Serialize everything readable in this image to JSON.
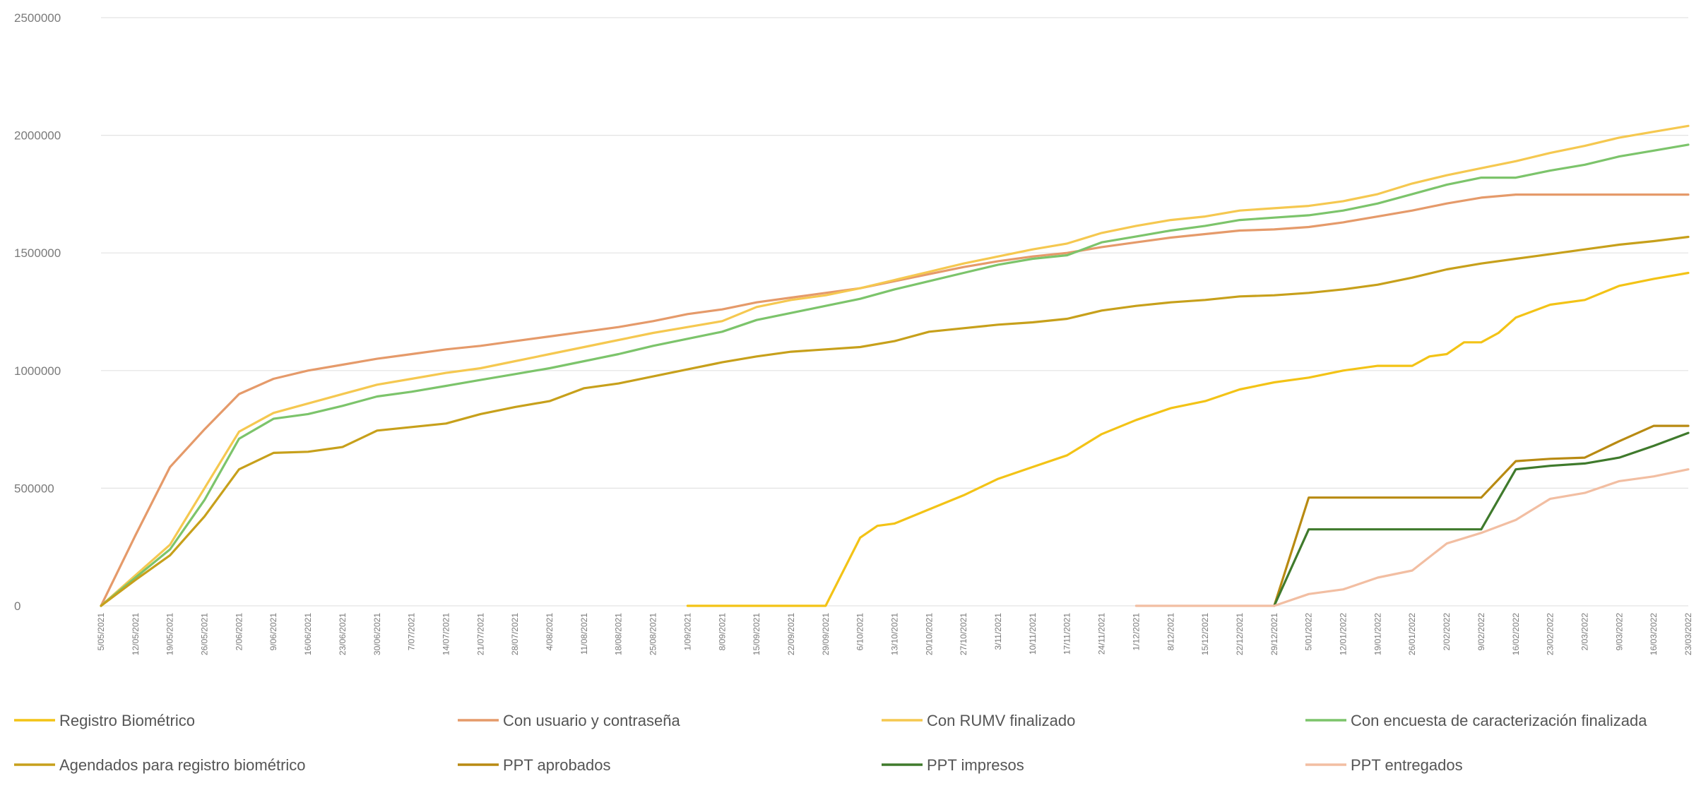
{
  "chart_data": {
    "type": "line",
    "title": "",
    "xlabel": "",
    "ylabel": "",
    "ylim": [
      0,
      2500000
    ],
    "yticks": [
      {
        "value": 0,
        "label": "0"
      },
      {
        "value": 500000,
        "label": "500000"
      },
      {
        "value": 1000000,
        "label": "1000000"
      },
      {
        "value": 1500000,
        "label": "1500000"
      },
      {
        "value": 2000000,
        "label": "2000000"
      },
      {
        "value": 2500000,
        "label": "2500000"
      }
    ],
    "grid": "horizontal",
    "legend_position": "bottom",
    "categories": [
      "5/05/2021",
      "12/05/2021",
      "19/05/2021",
      "26/05/2021",
      "2/06/2021",
      "9/06/2021",
      "16/06/2021",
      "23/06/2021",
      "30/06/2021",
      "7/07/2021",
      "14/07/2021",
      "21/07/2021",
      "28/07/2021",
      "4/08/2021",
      "11/08/2021",
      "18/08/2021",
      "25/08/2021",
      "1/09/2021",
      "8/09/2021",
      "15/09/2021",
      "22/09/2021",
      "29/09/2021",
      "6/10/2021",
      "13/10/2021",
      "20/10/2021",
      "27/10/2021",
      "3/11/2021",
      "10/11/2021",
      "17/11/2021",
      "24/11/2021",
      "1/12/2021",
      "8/12/2021",
      "15/12/2021",
      "22/12/2021",
      "29/12/2021",
      "5/01/2022",
      "12/01/2022",
      "19/01/2022",
      "26/01/2022",
      "2/02/2022",
      "9/02/2022",
      "16/02/2022",
      "23/02/2022",
      "2/03/2022",
      "9/03/2022",
      "16/03/2022",
      "23/03/2022"
    ],
    "series": [
      {
        "name": "Registro Biométrico",
        "color": "#f3c316",
        "dash": false,
        "points": [
          [
            17,
            0
          ],
          [
            18,
            0
          ],
          [
            19,
            0
          ],
          [
            20,
            0
          ],
          [
            21,
            0
          ],
          [
            21,
            0
          ],
          [
            22,
            290000
          ],
          [
            22.5,
            340000
          ],
          [
            23,
            350000
          ],
          [
            24,
            410000
          ],
          [
            25,
            470000
          ],
          [
            26,
            540000
          ],
          [
            27,
            590000
          ],
          [
            28,
            640000
          ],
          [
            29,
            730000
          ],
          [
            30,
            790000
          ],
          [
            31,
            840000
          ],
          [
            32,
            870000
          ],
          [
            33,
            920000
          ],
          [
            34,
            950000
          ],
          [
            35,
            970000
          ],
          [
            36,
            1000000
          ],
          [
            37,
            1020000
          ],
          [
            38,
            1020000
          ],
          [
            38.5,
            1060000
          ],
          [
            39,
            1070000
          ],
          [
            39.5,
            1120000
          ],
          [
            40,
            1120000
          ],
          [
            40.5,
            1160000
          ],
          [
            41,
            1225000
          ],
          [
            42,
            1280000
          ],
          [
            43,
            1300000
          ],
          [
            44,
            1360000
          ],
          [
            45,
            1390000
          ],
          [
            46,
            1415000
          ]
        ]
      },
      {
        "name": "Con usuario y contraseña",
        "color": "#e59a6a",
        "dash": false,
        "points": [
          [
            0,
            0
          ],
          [
            1,
            300000
          ],
          [
            2,
            590000
          ],
          [
            3,
            750000
          ],
          [
            4,
            900000
          ],
          [
            5,
            965000
          ],
          [
            6,
            1000000
          ],
          [
            7,
            1025000
          ],
          [
            8,
            1050000
          ],
          [
            9,
            1070000
          ],
          [
            10,
            1090000
          ],
          [
            11,
            1105000
          ],
          [
            12,
            1125000
          ],
          [
            13,
            1145000
          ],
          [
            14,
            1165000
          ],
          [
            15,
            1185000
          ],
          [
            16,
            1210000
          ],
          [
            17,
            1240000
          ],
          [
            18,
            1260000
          ],
          [
            19,
            1290000
          ],
          [
            20,
            1310000
          ],
          [
            21,
            1330000
          ],
          [
            22,
            1350000
          ],
          [
            23,
            1380000
          ],
          [
            24,
            1410000
          ],
          [
            25,
            1440000
          ],
          [
            26,
            1465000
          ],
          [
            27,
            1485000
          ],
          [
            28,
            1500000
          ],
          [
            29,
            1525000
          ],
          [
            30,
            1545000
          ],
          [
            31,
            1565000
          ],
          [
            32,
            1580000
          ],
          [
            33,
            1595000
          ],
          [
            34,
            1600000
          ],
          [
            35,
            1610000
          ],
          [
            36,
            1630000
          ],
          [
            37,
            1655000
          ],
          [
            38,
            1680000
          ],
          [
            39,
            1710000
          ],
          [
            40,
            1735000
          ],
          [
            41,
            1748000
          ],
          [
            42,
            1748000
          ],
          [
            43,
            1748000
          ],
          [
            44,
            1748000
          ],
          [
            45,
            1748000
          ],
          [
            46,
            1748000
          ]
        ]
      },
      {
        "name": "Con RUMV finalizado",
        "color": "#f5c850",
        "dash": false,
        "points": [
          [
            0,
            0
          ],
          [
            1,
            130000
          ],
          [
            2,
            260000
          ],
          [
            3,
            500000
          ],
          [
            4,
            740000
          ],
          [
            5,
            820000
          ],
          [
            6,
            860000
          ],
          [
            7,
            900000
          ],
          [
            8,
            940000
          ],
          [
            9,
            965000
          ],
          [
            10,
            990000
          ],
          [
            11,
            1010000
          ],
          [
            12,
            1040000
          ],
          [
            13,
            1070000
          ],
          [
            14,
            1100000
          ],
          [
            15,
            1130000
          ],
          [
            16,
            1160000
          ],
          [
            17,
            1185000
          ],
          [
            18,
            1210000
          ],
          [
            19,
            1270000
          ],
          [
            20,
            1300000
          ],
          [
            21,
            1320000
          ],
          [
            22,
            1350000
          ],
          [
            23,
            1385000
          ],
          [
            24,
            1420000
          ],
          [
            25,
            1455000
          ],
          [
            26,
            1485000
          ],
          [
            27,
            1515000
          ],
          [
            28,
            1540000
          ],
          [
            29,
            1585000
          ],
          [
            30,
            1615000
          ],
          [
            31,
            1640000
          ],
          [
            32,
            1655000
          ],
          [
            33,
            1680000
          ],
          [
            34,
            1690000
          ],
          [
            35,
            1700000
          ],
          [
            36,
            1720000
          ],
          [
            37,
            1750000
          ],
          [
            38,
            1795000
          ],
          [
            39,
            1830000
          ],
          [
            40,
            1860000
          ],
          [
            41,
            1890000
          ],
          [
            42,
            1925000
          ],
          [
            43,
            1955000
          ],
          [
            44,
            1990000
          ],
          [
            45,
            2015000
          ],
          [
            46,
            2040000
          ]
        ]
      },
      {
        "name": "Con encuesta de caracterización finalizada",
        "color": "#7cc46b",
        "dash": false,
        "points": [
          [
            0,
            0
          ],
          [
            1,
            120000
          ],
          [
            2,
            240000
          ],
          [
            3,
            450000
          ],
          [
            4,
            710000
          ],
          [
            5,
            795000
          ],
          [
            6,
            815000
          ],
          [
            7,
            850000
          ],
          [
            8,
            890000
          ],
          [
            9,
            910000
          ],
          [
            10,
            935000
          ],
          [
            11,
            960000
          ],
          [
            12,
            985000
          ],
          [
            13,
            1010000
          ],
          [
            14,
            1040000
          ],
          [
            15,
            1070000
          ],
          [
            16,
            1105000
          ],
          [
            17,
            1135000
          ],
          [
            18,
            1165000
          ],
          [
            19,
            1215000
          ],
          [
            20,
            1245000
          ],
          [
            21,
            1275000
          ],
          [
            22,
            1305000
          ],
          [
            23,
            1345000
          ],
          [
            24,
            1380000
          ],
          [
            25,
            1415000
          ],
          [
            26,
            1450000
          ],
          [
            27,
            1475000
          ],
          [
            28,
            1490000
          ],
          [
            29,
            1545000
          ],
          [
            30,
            1570000
          ],
          [
            31,
            1595000
          ],
          [
            32,
            1615000
          ],
          [
            33,
            1640000
          ],
          [
            34,
            1650000
          ],
          [
            35,
            1660000
          ],
          [
            36,
            1680000
          ],
          [
            37,
            1710000
          ],
          [
            38,
            1750000
          ],
          [
            39,
            1790000
          ],
          [
            40,
            1820000
          ],
          [
            41,
            1820000
          ],
          [
            42,
            1850000
          ],
          [
            43,
            1875000
          ],
          [
            44,
            1910000
          ],
          [
            45,
            1935000
          ],
          [
            46,
            1960000
          ]
        ]
      },
      {
        "name": "Agendados para registro biométrico",
        "color": "#c7a01b",
        "dash": false,
        "points": [
          [
            0,
            0
          ],
          [
            1,
            110000
          ],
          [
            2,
            215000
          ],
          [
            3,
            380000
          ],
          [
            4,
            580000
          ],
          [
            5,
            650000
          ],
          [
            6,
            655000
          ],
          [
            7,
            675000
          ],
          [
            8,
            745000
          ],
          [
            9,
            760000
          ],
          [
            10,
            775000
          ],
          [
            11,
            815000
          ],
          [
            12,
            845000
          ],
          [
            13,
            870000
          ],
          [
            14,
            925000
          ],
          [
            15,
            945000
          ],
          [
            16,
            975000
          ],
          [
            17,
            1005000
          ],
          [
            18,
            1035000
          ],
          [
            19,
            1060000
          ],
          [
            20,
            1080000
          ],
          [
            21,
            1090000
          ],
          [
            22,
            1100000
          ],
          [
            23,
            1125000
          ],
          [
            24,
            1165000
          ],
          [
            25,
            1180000
          ],
          [
            26,
            1195000
          ],
          [
            27,
            1205000
          ],
          [
            28,
            1220000
          ],
          [
            29,
            1255000
          ],
          [
            30,
            1275000
          ],
          [
            31,
            1290000
          ],
          [
            32,
            1300000
          ],
          [
            33,
            1315000
          ],
          [
            34,
            1320000
          ],
          [
            35,
            1330000
          ],
          [
            36,
            1345000
          ],
          [
            37,
            1365000
          ],
          [
            38,
            1395000
          ],
          [
            39,
            1430000
          ],
          [
            40,
            1455000
          ],
          [
            41,
            1475000
          ],
          [
            42,
            1495000
          ],
          [
            43,
            1515000
          ],
          [
            44,
            1535000
          ],
          [
            45,
            1550000
          ],
          [
            46,
            1568000
          ]
        ]
      },
      {
        "name": "PPT aprobados",
        "color": "#b88a12",
        "dash": false,
        "points": [
          [
            34,
            0
          ],
          [
            35,
            460000
          ],
          [
            36,
            460000
          ],
          [
            37,
            460000
          ],
          [
            38,
            460000
          ],
          [
            39,
            460000
          ],
          [
            40,
            460000
          ],
          [
            41,
            615000
          ],
          [
            42,
            625000
          ],
          [
            43,
            630000
          ],
          [
            44,
            700000
          ],
          [
            45,
            765000
          ],
          [
            46,
            765000
          ]
        ]
      },
      {
        "name": "PPT impresos",
        "color": "#3f7a2c",
        "dash": false,
        "points": [
          [
            34,
            0
          ],
          [
            35,
            325000
          ],
          [
            36,
            325000
          ],
          [
            37,
            325000
          ],
          [
            38,
            325000
          ],
          [
            39,
            325000
          ],
          [
            40,
            325000
          ],
          [
            41,
            580000
          ],
          [
            42,
            595000
          ],
          [
            43,
            605000
          ],
          [
            44,
            630000
          ],
          [
            45,
            680000
          ],
          [
            46,
            735000
          ]
        ]
      },
      {
        "name": "PPT entregados",
        "color": "#f2bea2",
        "dash": false,
        "points": [
          [
            30,
            0
          ],
          [
            31,
            0
          ],
          [
            32,
            0
          ],
          [
            33,
            0
          ],
          [
            34,
            0
          ],
          [
            35,
            50000
          ],
          [
            36,
            70000
          ],
          [
            37,
            120000
          ],
          [
            38,
            150000
          ],
          [
            39,
            265000
          ],
          [
            40,
            310000
          ],
          [
            41,
            365000
          ],
          [
            42,
            455000
          ],
          [
            43,
            480000
          ],
          [
            44,
            530000
          ],
          [
            45,
            550000
          ],
          [
            46,
            580000
          ]
        ]
      }
    ]
  }
}
